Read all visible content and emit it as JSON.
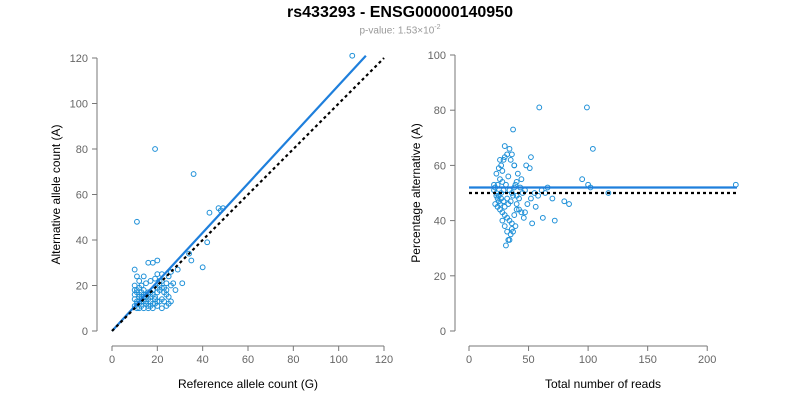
{
  "title": "rs433293 - ENSG00000140950",
  "subtitle": {
    "prefix": "p-value: 1.53×10",
    "exponent": "-2"
  },
  "chart_data": [
    {
      "type": "scatter",
      "xlabel": "Reference allele count (G)",
      "ylabel": "Alternative allele count (A)",
      "xlim": [
        0,
        120
      ],
      "ylim": [
        0,
        120
      ],
      "xticks": [
        0,
        20,
        40,
        60,
        80,
        100,
        120
      ],
      "yticks": [
        0,
        20,
        40,
        60,
        80,
        100,
        120
      ],
      "grid": false,
      "lines": [
        {
          "style": "solid",
          "color": "#1e7fdc",
          "points": [
            [
              0,
              0
            ],
            [
              112,
              121
            ]
          ]
        },
        {
          "style": "dotted",
          "color": "#000000",
          "points": [
            [
              0,
              0
            ],
            [
              120,
              120
            ]
          ]
        }
      ],
      "points": [
        [
          106,
          121
        ],
        [
          19,
          80
        ],
        [
          36,
          69
        ],
        [
          11,
          48
        ],
        [
          47,
          54
        ],
        [
          49,
          54
        ],
        [
          48,
          53
        ],
        [
          43,
          52
        ],
        [
          42,
          39
        ],
        [
          40,
          28
        ],
        [
          34,
          34
        ],
        [
          35,
          31
        ],
        [
          31,
          21
        ],
        [
          29,
          27
        ],
        [
          26,
          26
        ],
        [
          24,
          21
        ],
        [
          22,
          25
        ],
        [
          20,
          31
        ],
        [
          18,
          30
        ],
        [
          16,
          30
        ],
        [
          10,
          27
        ],
        [
          11,
          24
        ],
        [
          12,
          22
        ],
        [
          14,
          24
        ],
        [
          13,
          20
        ],
        [
          15,
          21
        ],
        [
          17,
          22
        ],
        [
          19,
          23
        ],
        [
          21,
          22
        ],
        [
          20,
          25
        ],
        [
          23,
          19
        ],
        [
          24,
          16
        ],
        [
          22,
          14
        ],
        [
          20,
          13
        ],
        [
          18,
          12
        ],
        [
          16,
          11
        ],
        [
          14,
          10
        ],
        [
          12,
          10
        ],
        [
          10,
          11
        ],
        [
          11,
          13
        ],
        [
          12,
          15
        ],
        [
          13,
          17
        ],
        [
          11,
          18
        ],
        [
          10,
          20
        ],
        [
          12,
          19
        ],
        [
          14,
          18
        ],
        [
          15,
          16
        ],
        [
          16,
          14
        ],
        [
          17,
          17
        ],
        [
          18,
          16
        ],
        [
          19,
          15
        ],
        [
          20,
          17
        ],
        [
          21,
          18
        ],
        [
          23,
          13
        ],
        [
          25,
          12
        ],
        [
          24,
          11
        ],
        [
          22,
          10
        ],
        [
          20,
          11
        ],
        [
          18,
          10
        ],
        [
          16,
          10
        ],
        [
          15,
          12
        ],
        [
          13,
          11
        ],
        [
          11,
          12
        ],
        [
          10,
          14
        ],
        [
          12,
          13
        ],
        [
          14,
          13
        ],
        [
          16,
          17
        ],
        [
          18,
          18
        ],
        [
          20,
          19
        ],
        [
          13,
          14
        ],
        [
          15,
          15
        ],
        [
          17,
          13
        ],
        [
          19,
          12
        ],
        [
          21,
          13
        ],
        [
          10,
          16
        ],
        [
          11,
          17
        ],
        [
          12,
          16
        ],
        [
          14,
          15
        ],
        [
          16,
          16
        ],
        [
          25,
          15
        ],
        [
          23,
          17
        ],
        [
          28,
          18
        ],
        [
          27,
          21
        ],
        [
          25,
          24
        ],
        [
          22,
          22
        ],
        [
          21,
          20
        ],
        [
          13,
          15
        ],
        [
          15,
          13
        ],
        [
          17,
          15
        ],
        [
          19,
          14
        ],
        [
          10,
          18
        ],
        [
          11,
          10
        ],
        [
          12,
          12
        ],
        [
          13,
          13
        ],
        [
          14,
          16
        ],
        [
          22,
          19
        ],
        [
          24,
          18
        ],
        [
          26,
          20
        ],
        [
          26,
          13
        ],
        [
          17,
          11
        ]
      ]
    },
    {
      "type": "scatter",
      "xlabel": "Total number of reads",
      "ylabel": "Percentage alternative (A)",
      "xlim": [
        0,
        225
      ],
      "ylim": [
        0,
        100
      ],
      "xticks": [
        0,
        50,
        100,
        150,
        200
      ],
      "yticks": [
        0,
        20,
        40,
        60,
        80,
        100
      ],
      "grid": false,
      "lines": [
        {
          "style": "solid",
          "color": "#1e7fdc",
          "points": [
            [
              0,
              52
            ],
            [
              225,
              52
            ]
          ]
        },
        {
          "style": "dotted",
          "color": "#000000",
          "points": [
            [
              0,
              50
            ],
            [
              225,
              50
            ]
          ]
        }
      ],
      "points": [
        [
          59,
          81
        ],
        [
          99,
          81
        ],
        [
          104,
          66
        ],
        [
          37,
          73
        ],
        [
          30,
          67
        ],
        [
          32,
          64
        ],
        [
          29,
          62
        ],
        [
          27,
          60
        ],
        [
          25,
          59
        ],
        [
          23,
          57
        ],
        [
          26,
          55
        ],
        [
          28,
          54
        ],
        [
          24,
          53
        ],
        [
          22,
          52
        ],
        [
          21,
          51
        ],
        [
          23,
          50
        ],
        [
          25,
          49
        ],
        [
          27,
          48
        ],
        [
          29,
          47
        ],
        [
          22,
          46
        ],
        [
          24,
          45
        ],
        [
          26,
          44
        ],
        [
          28,
          43
        ],
        [
          30,
          42
        ],
        [
          32,
          41
        ],
        [
          34,
          40
        ],
        [
          36,
          39
        ],
        [
          35,
          35
        ],
        [
          33,
          33
        ],
        [
          31,
          31
        ],
        [
          37,
          36
        ],
        [
          39,
          38
        ],
        [
          40,
          46
        ],
        [
          42,
          48
        ],
        [
          44,
          55
        ],
        [
          48,
          60
        ],
        [
          51,
          59
        ],
        [
          52,
          63
        ],
        [
          47,
          43
        ],
        [
          53,
          39
        ],
        [
          56,
          45
        ],
        [
          62,
          41
        ],
        [
          64,
          50
        ],
        [
          66,
          52
        ],
        [
          72,
          40
        ],
        [
          84,
          46
        ],
        [
          95,
          55
        ],
        [
          100,
          53
        ],
        [
          102,
          52
        ],
        [
          117,
          50
        ],
        [
          224,
          53
        ],
        [
          38,
          60
        ],
        [
          40,
          54
        ],
        [
          41,
          57
        ],
        [
          35,
          62
        ],
        [
          33,
          56
        ],
        [
          31,
          53
        ],
        [
          29,
          51
        ],
        [
          27,
          50
        ],
        [
          25,
          47
        ],
        [
          23,
          49
        ],
        [
          21,
          53
        ],
        [
          30,
          45
        ],
        [
          32,
          48
        ],
        [
          34,
          51
        ],
        [
          36,
          50
        ],
        [
          38,
          52
        ],
        [
          28,
          58
        ],
        [
          26,
          62
        ],
        [
          30,
          63
        ],
        [
          34,
          66
        ],
        [
          36,
          64
        ],
        [
          38,
          60
        ],
        [
          40,
          49
        ],
        [
          42,
          44
        ],
        [
          33,
          46
        ],
        [
          35,
          47
        ],
        [
          37,
          49
        ],
        [
          39,
          53
        ],
        [
          43,
          52
        ],
        [
          45,
          50
        ],
        [
          47,
          51
        ],
        [
          24,
          48
        ],
        [
          26,
          46
        ],
        [
          28,
          40
        ],
        [
          30,
          38
        ],
        [
          32,
          36
        ],
        [
          34,
          33
        ],
        [
          36,
          37
        ],
        [
          38,
          42
        ],
        [
          40,
          44
        ],
        [
          44,
          43
        ],
        [
          46,
          41
        ],
        [
          49,
          46
        ],
        [
          52,
          48
        ],
        [
          55,
          50
        ],
        [
          58,
          49
        ],
        [
          61,
          51
        ],
        [
          70,
          48
        ],
        [
          80,
          47
        ]
      ]
    }
  ]
}
